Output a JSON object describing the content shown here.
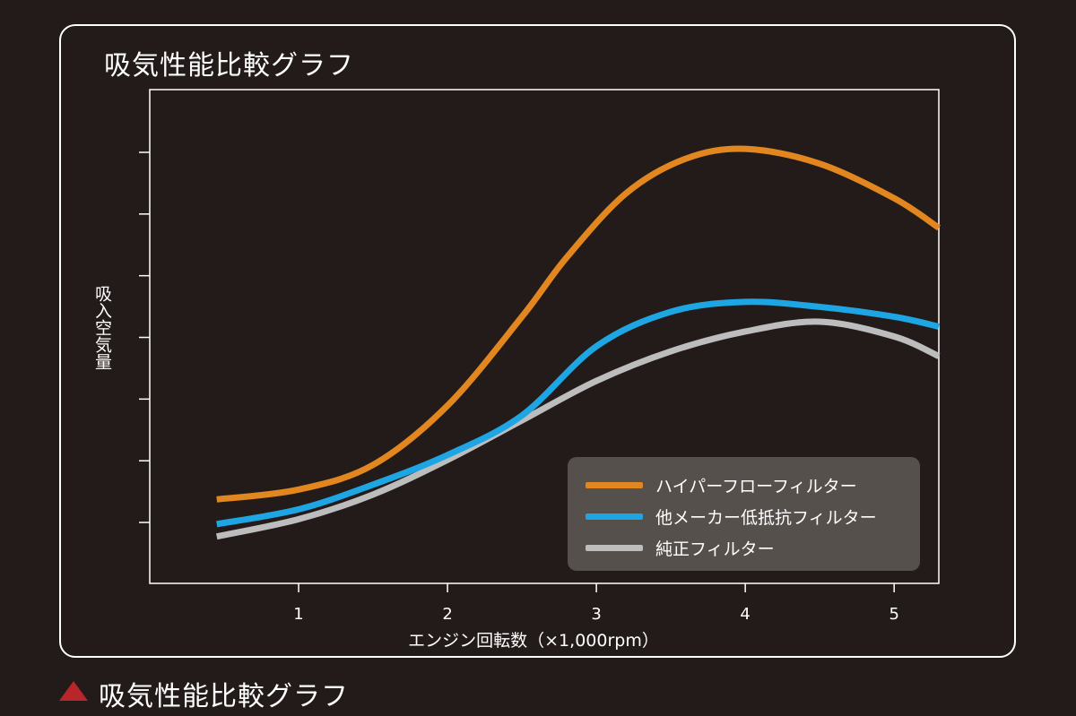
{
  "panel_title": "吸気性能比較グラフ",
  "caption": "吸気性能比較グラフ",
  "chart_data": {
    "type": "line",
    "title": "吸気性能比較グラフ",
    "xlabel": "エンジン回転数（×1,000rpm）",
    "ylabel": "吸入空気量",
    "x_ticks": [
      "1",
      "2",
      "3",
      "4",
      "5"
    ],
    "xlim": [
      0,
      5.3
    ],
    "ylim": [
      0,
      10
    ],
    "y_tick_count": 7,
    "grid": false,
    "legend_position": "bottom-right",
    "series": [
      {
        "name": "ハイパーフローフィルター",
        "color": "#e2861f",
        "x": [
          0.45,
          1.0,
          1.5,
          2.0,
          2.5,
          2.8,
          3.2,
          3.6,
          4.0,
          4.5,
          5.0,
          5.3
        ],
        "y": [
          1.7,
          1.9,
          2.4,
          3.6,
          5.4,
          6.6,
          7.9,
          8.6,
          8.8,
          8.5,
          7.8,
          7.2
        ]
      },
      {
        "name": "他メーカー低抵抗フィルター",
        "color": "#1ea6e4",
        "x": [
          0.45,
          1.0,
          1.5,
          2.0,
          2.5,
          3.0,
          3.5,
          4.0,
          4.5,
          5.0,
          5.3
        ],
        "y": [
          1.2,
          1.5,
          2.0,
          2.6,
          3.4,
          4.8,
          5.5,
          5.7,
          5.6,
          5.4,
          5.2
        ]
      },
      {
        "name": "純正フィルター",
        "color": "#bdbdbd",
        "x": [
          0.45,
          1.0,
          1.5,
          2.0,
          2.5,
          3.0,
          3.5,
          4.0,
          4.5,
          5.0,
          5.3
        ],
        "y": [
          0.95,
          1.3,
          1.8,
          2.5,
          3.3,
          4.1,
          4.7,
          5.1,
          5.3,
          5.0,
          4.6
        ]
      }
    ]
  }
}
